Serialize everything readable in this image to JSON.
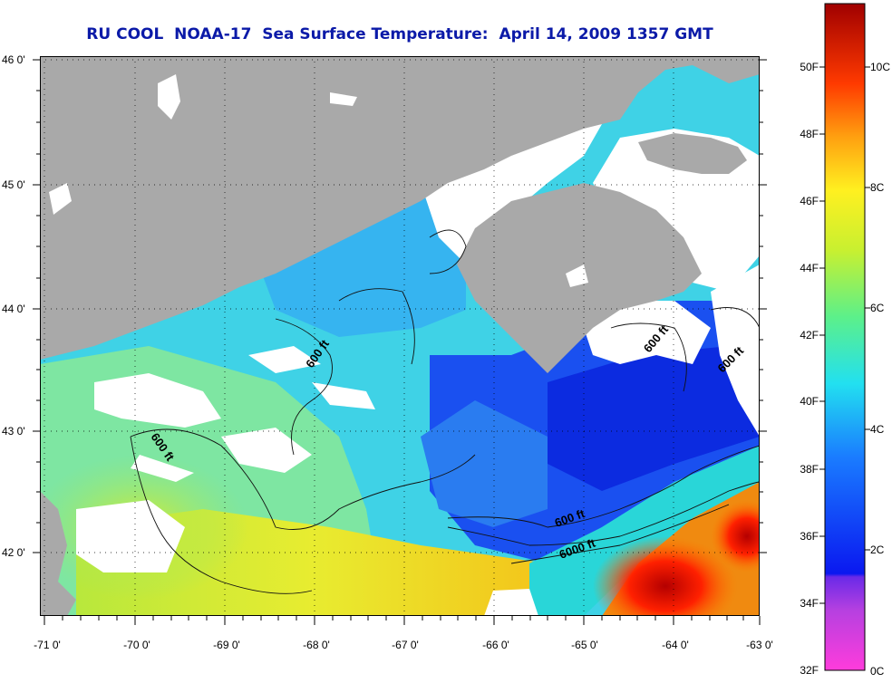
{
  "title": "RU COOL  NOAA-17  Sea Surface Temperature:  April 14, 2009 1357 GMT",
  "axes": {
    "lat_labels": [
      "46 0'",
      "45 0'",
      "44 0'",
      "43 0'",
      "42 0'"
    ],
    "lon_labels": [
      "-71 0'",
      "-70 0'",
      "-69 0'",
      "-68 0'",
      "-67 0'",
      "-66 0'",
      "-65 0'",
      "-64 0'",
      "-63 0'"
    ]
  },
  "contours": {
    "labels": [
      "600 ft",
      "600 ft",
      "600 ft",
      "600 ft",
      "600 ft",
      "6000 ft"
    ]
  },
  "colorbar": {
    "fahrenheit": [
      "50F",
      "48F",
      "46F",
      "44F",
      "42F",
      "40F",
      "38F",
      "36F",
      "34F",
      "32F"
    ],
    "celsius": [
      "10C",
      "8C",
      "6C",
      "4C",
      "2C",
      "0C"
    ]
  },
  "colors": {
    "land": "#a9a9a9",
    "cloud": "#ffffff",
    "title": "#0b1aa8"
  }
}
